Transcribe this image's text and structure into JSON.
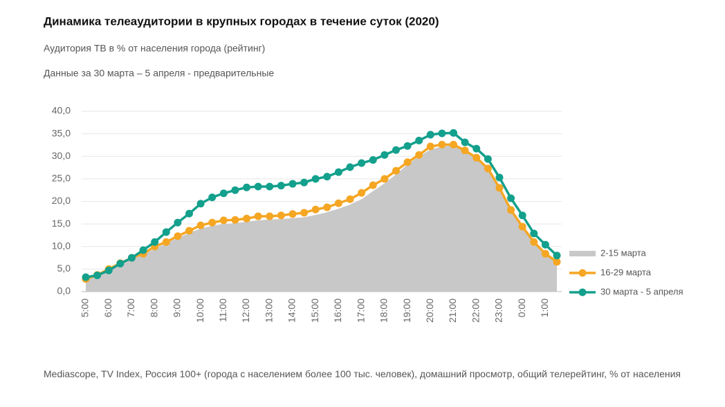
{
  "chart_data": {
    "type": "line",
    "title": "Динамика телеаудитории в крупных городах в течение суток (2020)",
    "subtitle": "Аудитория ТВ в % от населения города (рейтинг)",
    "note": "Данные за 30 марта – 5 апреля - предварительные",
    "source": "Mediascope, TV Index, Россия 100+ (города с населением более 100 тыс. человек), домашний просмотр, общий телерейтинг, % от населения",
    "categories": [
      "5:00",
      null,
      "6:00",
      null,
      "7:00",
      null,
      "8:00",
      null,
      "9:00",
      null,
      "10:00",
      null,
      "11:00",
      null,
      "12:00",
      null,
      "13:00",
      null,
      "14:00",
      null,
      "15:00",
      null,
      "16:00",
      null,
      "17:00",
      null,
      "18:00",
      null,
      "19:00",
      null,
      "20:00",
      null,
      "21:00",
      null,
      "22:00",
      null,
      "23:00",
      null,
      "0:00",
      null,
      "1:00",
      null
    ],
    "ylim": [
      0,
      40
    ],
    "yticks": [
      {
        "value": 0,
        "label": "0,0"
      },
      {
        "value": 5,
        "label": "5,0"
      },
      {
        "value": 10,
        "label": "10,0"
      },
      {
        "value": 15,
        "label": "15,0"
      },
      {
        "value": 20,
        "label": "20,0"
      },
      {
        "value": 25,
        "label": "25,0"
      },
      {
        "value": 30,
        "label": "30,0"
      },
      {
        "value": 35,
        "label": "35,0"
      },
      {
        "value": 40,
        "label": "40,0"
      }
    ],
    "grid": true,
    "legend": "right",
    "series": [
      {
        "name": "2-15 марта",
        "style": "area",
        "color": "#c8c8c8",
        "values": [
          2.6,
          3.5,
          4.7,
          6.0,
          7.2,
          8.2,
          9.5,
          10.7,
          11.9,
          13.0,
          14.0,
          14.6,
          15.0,
          15.2,
          15.5,
          15.8,
          16.0,
          16.1,
          16.3,
          16.5,
          17.0,
          17.6,
          18.4,
          19.3,
          20.5,
          22.3,
          24.0,
          26.0,
          28.2,
          30.0,
          31.5,
          32.2,
          32.4,
          31.2,
          29.8,
          27.0,
          22.5,
          17.8,
          14.0,
          10.7,
          8.1,
          6.3
        ]
      },
      {
        "name": "16-29 марта",
        "style": "line",
        "color": "#f5a623",
        "values": [
          2.8,
          3.7,
          5.0,
          6.3,
          7.5,
          8.4,
          10.0,
          11.0,
          12.3,
          13.5,
          14.7,
          15.3,
          15.8,
          15.9,
          16.2,
          16.7,
          16.7,
          16.9,
          17.2,
          17.5,
          18.2,
          18.7,
          19.6,
          20.5,
          21.9,
          23.6,
          25.0,
          26.8,
          28.7,
          30.3,
          32.2,
          32.6,
          32.6,
          31.3,
          29.7,
          27.3,
          23.0,
          18.1,
          14.4,
          11.0,
          8.4,
          6.6
        ]
      },
      {
        "name": "30 марта - 5 апреля",
        "style": "line",
        "color": "#13a08c",
        "values": [
          3.2,
          3.6,
          4.7,
          6.2,
          7.5,
          9.2,
          11.0,
          13.2,
          15.3,
          17.3,
          19.5,
          20.9,
          21.8,
          22.5,
          23.1,
          23.3,
          23.3,
          23.5,
          23.9,
          24.2,
          25.0,
          25.5,
          26.5,
          27.6,
          28.5,
          29.2,
          30.3,
          31.4,
          32.3,
          33.5,
          34.8,
          35.1,
          35.2,
          33.1,
          31.7,
          29.4,
          25.3,
          20.7,
          16.9,
          12.9,
          10.4,
          8.0
        ]
      }
    ]
  }
}
